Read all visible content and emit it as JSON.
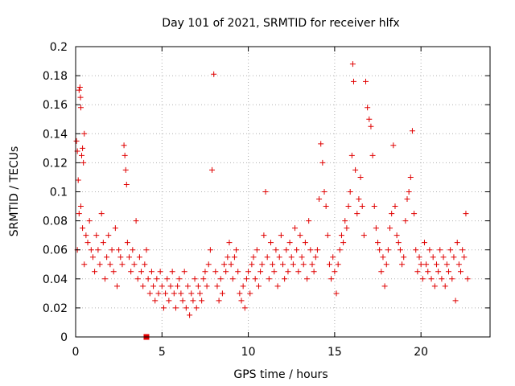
{
  "chart_data": {
    "type": "scatter",
    "title": "Day 101 of 2021, SRMTID for receiver hlfx",
    "xlabel": "GPS time / hours",
    "ylabel": "SRMTID / TECUs",
    "xlim": [
      0,
      24
    ],
    "ylim": [
      0,
      0.2
    ],
    "x_ticks": [
      0,
      5,
      10,
      15,
      20
    ],
    "y_ticks": [
      0,
      0.02,
      0.04,
      0.06,
      0.08,
      0.1,
      0.12,
      0.14,
      0.16,
      0.18,
      0.2
    ],
    "x_tick_labels": [
      "0",
      "5",
      "10",
      "15",
      "20"
    ],
    "y_tick_labels": [
      "0",
      "0.02",
      "0.04",
      "0.06",
      "0.08",
      "0.1",
      "0.12",
      "0.14",
      "0.16",
      "0.18",
      "0.2"
    ],
    "grid": true,
    "marker": "+",
    "color": "#e00000",
    "series": [
      {
        "name": "SRMTID",
        "points": [
          [
            0.05,
            0.135
          ],
          [
            0.1,
            0.128
          ],
          [
            0.15,
            0.108
          ],
          [
            0.2,
            0.17
          ],
          [
            0.25,
            0.172
          ],
          [
            0.28,
            0.165
          ],
          [
            0.3,
            0.158
          ],
          [
            0.35,
            0.125
          ],
          [
            0.4,
            0.13
          ],
          [
            0.45,
            0.12
          ],
          [
            0.5,
            0.14
          ],
          [
            0.3,
            0.09
          ],
          [
            0.2,
            0.085
          ],
          [
            0.4,
            0.075
          ],
          [
            0.6,
            0.07
          ],
          [
            0.1,
            0.06
          ],
          [
            0.5,
            0.05
          ],
          [
            0.7,
            0.065
          ],
          [
            0.8,
            0.08
          ],
          [
            0.9,
            0.06
          ],
          [
            1.0,
            0.055
          ],
          [
            1.1,
            0.045
          ],
          [
            1.2,
            0.07
          ],
          [
            1.3,
            0.06
          ],
          [
            1.4,
            0.05
          ],
          [
            1.5,
            0.085
          ],
          [
            1.6,
            0.065
          ],
          [
            1.7,
            0.04
          ],
          [
            1.8,
            0.055
          ],
          [
            1.9,
            0.07
          ],
          [
            2.0,
            0.05
          ],
          [
            2.1,
            0.06
          ],
          [
            2.2,
            0.045
          ],
          [
            2.3,
            0.075
          ],
          [
            2.4,
            0.035
          ],
          [
            2.5,
            0.06
          ],
          [
            2.6,
            0.055
          ],
          [
            2.7,
            0.05
          ],
          [
            2.8,
            0.132
          ],
          [
            2.85,
            0.125
          ],
          [
            2.9,
            0.115
          ],
          [
            2.95,
            0.105
          ],
          [
            3.0,
            0.065
          ],
          [
            3.1,
            0.055
          ],
          [
            3.2,
            0.045
          ],
          [
            3.3,
            0.06
          ],
          [
            3.4,
            0.05
          ],
          [
            3.5,
            0.08
          ],
          [
            3.6,
            0.04
          ],
          [
            3.7,
            0.055
          ],
          [
            3.8,
            0.045
          ],
          [
            3.9,
            0.035
          ],
          [
            4.0,
            0.05
          ],
          [
            4.1,
            0.06
          ],
          [
            4.2,
            0.04
          ],
          [
            4.3,
            0.03
          ],
          [
            4.4,
            0.045
          ],
          [
            4.5,
            0.035
          ],
          [
            4.6,
            0.025
          ],
          [
            4.7,
            0.04
          ],
          [
            4.8,
            0.03
          ],
          [
            4.9,
            0.045
          ],
          [
            5.0,
            0.035
          ],
          [
            5.1,
            0.02
          ],
          [
            5.2,
            0.03
          ],
          [
            5.3,
            0.04
          ],
          [
            5.4,
            0.025
          ],
          [
            5.5,
            0.035
          ],
          [
            5.6,
            0.045
          ],
          [
            5.7,
            0.03
          ],
          [
            5.8,
            0.02
          ],
          [
            5.9,
            0.035
          ],
          [
            6.0,
            0.04
          ],
          [
            6.1,
            0.03
          ],
          [
            6.2,
            0.025
          ],
          [
            6.3,
            0.045
          ],
          [
            6.4,
            0.02
          ],
          [
            6.5,
            0.035
          ],
          [
            6.6,
            0.015
          ],
          [
            6.7,
            0.03
          ],
          [
            6.8,
            0.025
          ],
          [
            6.9,
            0.04
          ],
          [
            7.0,
            0.02
          ],
          [
            7.1,
            0.035
          ],
          [
            7.2,
            0.03
          ],
          [
            7.3,
            0.025
          ],
          [
            7.4,
            0.04
          ],
          [
            7.5,
            0.045
          ],
          [
            7.6,
            0.035
          ],
          [
            7.7,
            0.05
          ],
          [
            7.8,
            0.06
          ],
          [
            7.9,
            0.115
          ],
          [
            8.0,
            0.181
          ],
          [
            8.1,
            0.045
          ],
          [
            8.2,
            0.035
          ],
          [
            8.3,
            0.025
          ],
          [
            8.4,
            0.04
          ],
          [
            8.5,
            0.03
          ],
          [
            8.6,
            0.05
          ],
          [
            8.7,
            0.045
          ],
          [
            8.8,
            0.055
          ],
          [
            8.9,
            0.065
          ],
          [
            9.0,
            0.05
          ],
          [
            9.1,
            0.04
          ],
          [
            9.2,
            0.055
          ],
          [
            9.3,
            0.06
          ],
          [
            9.4,
            0.045
          ],
          [
            9.5,
            0.03
          ],
          [
            9.6,
            0.025
          ],
          [
            9.7,
            0.035
          ],
          [
            9.8,
            0.02
          ],
          [
            9.9,
            0.04
          ],
          [
            10.0,
            0.045
          ],
          [
            10.1,
            0.03
          ],
          [
            10.2,
            0.05
          ],
          [
            10.3,
            0.055
          ],
          [
            10.4,
            0.04
          ],
          [
            10.5,
            0.06
          ],
          [
            10.6,
            0.035
          ],
          [
            10.7,
            0.045
          ],
          [
            10.8,
            0.05
          ],
          [
            10.9,
            0.07
          ],
          [
            11.0,
            0.1
          ],
          [
            11.1,
            0.055
          ],
          [
            11.2,
            0.04
          ],
          [
            11.3,
            0.065
          ],
          [
            11.4,
            0.05
          ],
          [
            11.5,
            0.045
          ],
          [
            11.6,
            0.06
          ],
          [
            11.7,
            0.035
          ],
          [
            11.8,
            0.055
          ],
          [
            11.9,
            0.07
          ],
          [
            12.0,
            0.05
          ],
          [
            12.1,
            0.04
          ],
          [
            12.2,
            0.06
          ],
          [
            12.3,
            0.045
          ],
          [
            12.4,
            0.065
          ],
          [
            12.5,
            0.055
          ],
          [
            12.6,
            0.05
          ],
          [
            12.7,
            0.075
          ],
          [
            12.8,
            0.06
          ],
          [
            12.9,
            0.045
          ],
          [
            13.0,
            0.07
          ],
          [
            13.1,
            0.055
          ],
          [
            13.2,
            0.05
          ],
          [
            13.3,
            0.065
          ],
          [
            13.4,
            0.04
          ],
          [
            13.5,
            0.08
          ],
          [
            13.6,
            0.06
          ],
          [
            13.7,
            0.05
          ],
          [
            13.8,
            0.045
          ],
          [
            13.9,
            0.055
          ],
          [
            14.0,
            0.06
          ],
          [
            14.1,
            0.095
          ],
          [
            14.2,
            0.133
          ],
          [
            14.3,
            0.12
          ],
          [
            14.4,
            0.1
          ],
          [
            14.5,
            0.09
          ],
          [
            14.6,
            0.07
          ],
          [
            14.7,
            0.05
          ],
          [
            14.8,
            0.04
          ],
          [
            14.9,
            0.055
          ],
          [
            15.0,
            0.045
          ],
          [
            15.1,
            0.03
          ],
          [
            15.2,
            0.05
          ],
          [
            15.3,
            0.06
          ],
          [
            15.4,
            0.07
          ],
          [
            15.5,
            0.065
          ],
          [
            15.6,
            0.08
          ],
          [
            15.7,
            0.075
          ],
          [
            15.8,
            0.09
          ],
          [
            15.9,
            0.1
          ],
          [
            16.0,
            0.125
          ],
          [
            16.05,
            0.188
          ],
          [
            16.1,
            0.176
          ],
          [
            16.2,
            0.115
          ],
          [
            16.3,
            0.085
          ],
          [
            16.4,
            0.095
          ],
          [
            16.5,
            0.11
          ],
          [
            16.6,
            0.09
          ],
          [
            16.7,
            0.07
          ],
          [
            16.8,
            0.176
          ],
          [
            16.9,
            0.158
          ],
          [
            17.0,
            0.15
          ],
          [
            17.1,
            0.145
          ],
          [
            17.2,
            0.125
          ],
          [
            17.3,
            0.09
          ],
          [
            17.4,
            0.075
          ],
          [
            17.5,
            0.065
          ],
          [
            17.6,
            0.06
          ],
          [
            17.7,
            0.045
          ],
          [
            17.8,
            0.055
          ],
          [
            17.9,
            0.035
          ],
          [
            18.0,
            0.05
          ],
          [
            18.1,
            0.06
          ],
          [
            18.2,
            0.075
          ],
          [
            18.3,
            0.085
          ],
          [
            18.4,
            0.132
          ],
          [
            18.5,
            0.09
          ],
          [
            18.6,
            0.07
          ],
          [
            18.7,
            0.065
          ],
          [
            18.8,
            0.06
          ],
          [
            18.9,
            0.05
          ],
          [
            19.0,
            0.055
          ],
          [
            19.1,
            0.08
          ],
          [
            19.2,
            0.095
          ],
          [
            19.3,
            0.1
          ],
          [
            19.4,
            0.11
          ],
          [
            19.5,
            0.142
          ],
          [
            19.6,
            0.085
          ],
          [
            19.7,
            0.06
          ],
          [
            19.8,
            0.045
          ],
          [
            19.9,
            0.055
          ],
          [
            20.0,
            0.05
          ],
          [
            20.1,
            0.04
          ],
          [
            20.2,
            0.065
          ],
          [
            20.3,
            0.05
          ],
          [
            20.4,
            0.045
          ],
          [
            20.5,
            0.06
          ],
          [
            20.6,
            0.04
          ],
          [
            20.7,
            0.055
          ],
          [
            20.8,
            0.035
          ],
          [
            20.9,
            0.05
          ],
          [
            21.0,
            0.045
          ],
          [
            21.1,
            0.06
          ],
          [
            21.2,
            0.04
          ],
          [
            21.3,
            0.055
          ],
          [
            21.4,
            0.035
          ],
          [
            21.5,
            0.05
          ],
          [
            21.6,
            0.045
          ],
          [
            21.7,
            0.06
          ],
          [
            21.8,
            0.04
          ],
          [
            21.9,
            0.055
          ],
          [
            22.0,
            0.025
          ],
          [
            22.1,
            0.065
          ],
          [
            22.2,
            0.05
          ],
          [
            22.3,
            0.045
          ],
          [
            22.4,
            0.06
          ],
          [
            22.5,
            0.055
          ],
          [
            22.6,
            0.085
          ],
          [
            22.7,
            0.04
          ]
        ]
      }
    ],
    "special_marks": [
      {
        "x": 4.1,
        "y": 0.0,
        "shape": "square"
      }
    ]
  }
}
